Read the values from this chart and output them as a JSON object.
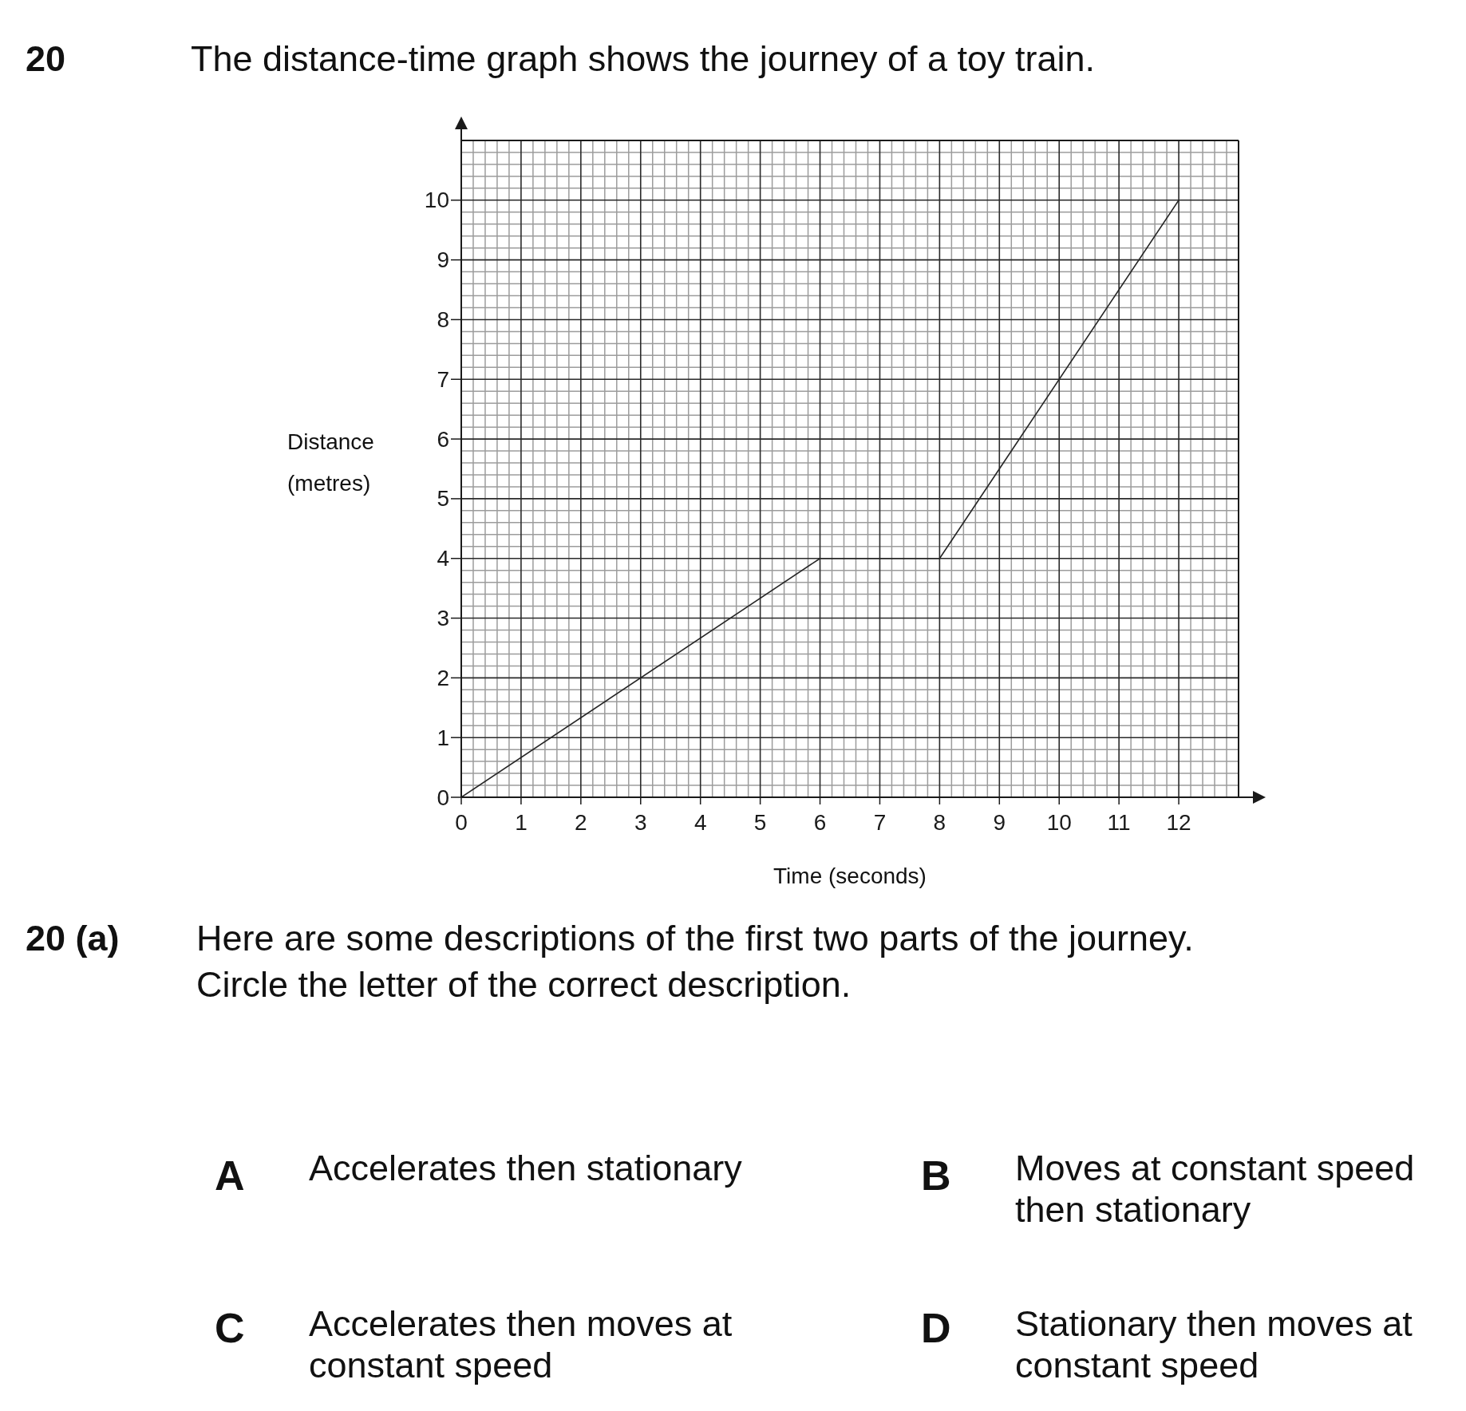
{
  "chart_data": {
    "type": "line",
    "title": "The distance-time graph shows the journey of a toy train.",
    "xlabel": "Time (seconds)",
    "ylabel": "Distance (metres)",
    "x": [
      0,
      6,
      8,
      12
    ],
    "values": [
      0,
      4,
      4,
      10
    ],
    "color": "#262626",
    "xlim": [
      0,
      13
    ],
    "ylim": [
      0,
      11
    ],
    "xticks": [
      0,
      {
        "value": 0.2,
        "label": null
      },
      {
        "value": 0.4,
        "label": null
      },
      {
        "value": 0.6,
        "label": null
      },
      {
        "value": 0.8,
        "label": null
      },
      1,
      {
        "value": 1.2,
        "label": null
      },
      {
        "value": 1.4,
        "label": null
      },
      {
        "value": 1.6,
        "label": null
      },
      {
        "value": 1.8,
        "label": null
      },
      2,
      {
        "value": 2.2,
        "label": null
      },
      {
        "value": 2.4,
        "label": null
      },
      {
        "value": 2.6,
        "label": null
      },
      {
        "value": 2.8,
        "label": null
      },
      3,
      {
        "value": 3.2,
        "label": null
      },
      {
        "value": 3.4,
        "label": null
      },
      {
        "value": 3.6,
        "label": null
      },
      {
        "value": 3.8,
        "label": null
      },
      4,
      {
        "value": 4.2,
        "label": null
      },
      {
        "value": 4.4,
        "label": null
      },
      {
        "value": 4.6,
        "label": null
      },
      {
        "value": 4.8,
        "label": null
      },
      5,
      {
        "value": 5.2,
        "label": null
      },
      {
        "value": 5.4,
        "label": null
      },
      {
        "value": 5.6,
        "label": null
      },
      {
        "value": 5.8,
        "label": null
      },
      6,
      {
        "value": 6.2,
        "label": null
      },
      {
        "value": 6.4,
        "label": null
      },
      {
        "value": 6.6,
        "label": null
      },
      {
        "value": 6.8,
        "label": null
      },
      7,
      {
        "value": 7.2,
        "label": null
      },
      {
        "value": 7.4,
        "label": null
      },
      {
        "value": 7.6,
        "label": null
      },
      {
        "value": 7.8,
        "label": null
      },
      8,
      {
        "value": 8.2,
        "label": null
      },
      {
        "value": 8.4,
        "label": null
      },
      {
        "value": 8.6,
        "label": null
      },
      {
        "value": 8.8,
        "label": null
      },
      9,
      {
        "value": 9.2,
        "label": null
      },
      {
        "value": 9.4,
        "label": null
      },
      {
        "value": 9.6,
        "label": null
      },
      {
        "value": 9.8,
        "label": null
      },
      10,
      {
        "value": 10.2,
        "label": null
      },
      {
        "value": 10.4,
        "label": null
      },
      {
        "value": 10.6,
        "label": null
      },
      {
        "value": 10.8,
        "label": null
      },
      11,
      {
        "value": 11.2,
        "label": null
      },
      {
        "value": 11.4,
        "label": null
      },
      {
        "value": 11.6,
        "label": null
      },
      {
        "value": 11.8,
        "label": null
      },
      12,
      {
        "value": 12.2,
        "label": null
      },
      {
        "value": 12.4,
        "label": null
      },
      {
        "value": 12.6,
        "label": null
      },
      {
        "value": 12.8,
        "label": null
      }
    ],
    "yticks": [
      0,
      {
        "value": 0.2,
        "label": null
      },
      {
        "value": 0.4,
        "label": null
      },
      {
        "value": 0.6,
        "label": null
      },
      {
        "value": 0.8,
        "label": null
      },
      1,
      {
        "value": 1.2,
        "label": null
      },
      {
        "value": 1.4,
        "label": null
      },
      {
        "value": 1.6,
        "label": null
      },
      {
        "value": 1.8,
        "label": null
      },
      2,
      {
        "value": 2.2,
        "label": null
      },
      {
        "value": 2.4,
        "label": null
      },
      {
        "value": 2.6,
        "label": null
      },
      {
        "value": 2.8,
        "label": null
      },
      3,
      {
        "value": 3.2,
        "label": null
      },
      {
        "value": 3.4,
        "label": null
      },
      {
        "value": 3.6,
        "label": null
      },
      {
        "value": 3.8,
        "label": null
      },
      4,
      {
        "value": 4.2,
        "label": null
      },
      {
        "value": 4.4,
        "label": null
      },
      {
        "value": 4.6,
        "label": null
      },
      {
        "value": 4.8,
        "label": null
      },
      5,
      {
        "value": 5.2,
        "label": null
      },
      {
        "value": 5.4,
        "label": null
      },
      {
        "value": 5.6,
        "label": null
      },
      {
        "value": 5.8,
        "label": null
      },
      6,
      {
        "value": 6.2,
        "label": null
      },
      {
        "value": 6.4,
        "label": null
      },
      {
        "value": 6.6,
        "label": null
      },
      {
        "value": 6.8,
        "label": null
      },
      7,
      {
        "value": 7.2,
        "label": null
      },
      {
        "value": 7.4,
        "label": null
      },
      {
        "value": 7.6,
        "label": null
      },
      {
        "value": 7.8,
        "label": null
      },
      8,
      {
        "value": 8.2,
        "label": null
      },
      {
        "value": 8.4,
        "label": null
      },
      {
        "value": 8.6,
        "label": null
      },
      {
        "value": 8.8,
        "label": null
      },
      9,
      {
        "value": 9.2,
        "label": null
      },
      {
        "value": 9.4,
        "label": null
      },
      {
        "value": 9.6,
        "label": null
      },
      {
        "value": 9.8,
        "label": null
      },
      10,
      {
        "value": 10.2,
        "label": null
      },
      {
        "value": 10.4,
        "label": null
      },
      {
        "value": 10.6,
        "label": null
      },
      {
        "value": 10.8,
        "label": null
      }
    ],
    "grid": true,
    "annotations": [
      "20",
      "20 (a)",
      "Here are some descriptions of the first two parts of the journey.",
      "Circle the letter of the correct description.",
      "A",
      "Accelerates then stationary",
      "B",
      "Moves at constant speed then stationary",
      "C",
      "Accelerates then moves at constant speed",
      "D",
      "Stationary then moves at constant speed"
    ]
  }
}
